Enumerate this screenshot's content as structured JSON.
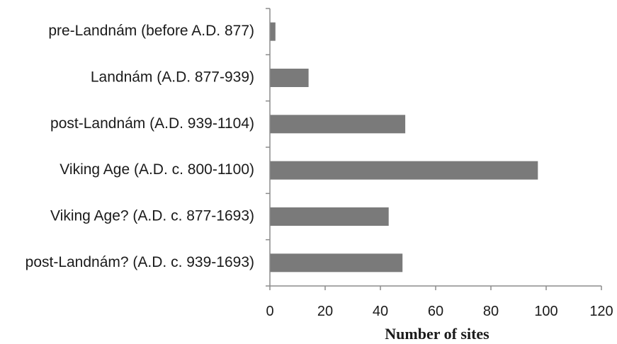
{
  "chart_data": {
    "type": "bar",
    "orientation": "horizontal",
    "categories": [
      "pre-Landnám (before A.D. 877)",
      "Landnám (A.D. 877-939)",
      "post-Landnám (A.D. 939-1104)",
      "Viking Age (A.D. c. 800-1100)",
      "Viking Age? (A.D. c. 877-1693)",
      "post-Landnám? (A.D. c. 939-1693)"
    ],
    "values": [
      2,
      14,
      49,
      97,
      43,
      48
    ],
    "xlabel": "Number of sites",
    "ylabel": "",
    "xlim": [
      0,
      120
    ],
    "xticks": [
      "0",
      "20",
      "40",
      "60",
      "80",
      "100",
      "120"
    ],
    "grid": false,
    "bar_color": "#7a7a7a",
    "axis_color": "#8c8c8c"
  }
}
